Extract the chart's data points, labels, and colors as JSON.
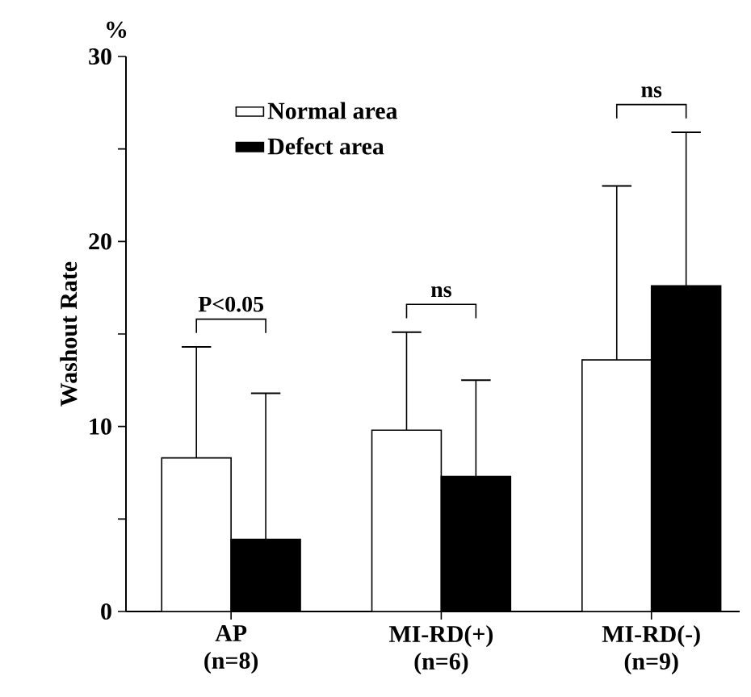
{
  "chart_data": {
    "type": "bar",
    "ylabel": "Washout Rate",
    "categories": [
      "AP (n=8)",
      "MI-RD(+) (n=6)",
      "MI-RD(-) (n=9)"
    ],
    "series": [
      {
        "name": "Normal area",
        "color": "#ffffff",
        "values": [
          8.3,
          9.8,
          13.6
        ],
        "errors": [
          [
            8.3,
            14.3
          ],
          [
            9.8,
            15.1
          ],
          [
            13.6,
            23.0
          ]
        ]
      },
      {
        "name": "Defect area",
        "color": "#000000",
        "values": [
          3.9,
          7.3,
          17.6
        ],
        "errors": [
          [
            3.9,
            11.8
          ],
          [
            7.3,
            12.5
          ],
          [
            17.6,
            25.9
          ]
        ]
      }
    ],
    "ylim": [
      0,
      30
    ],
    "yticks": [
      0,
      {
        "value": 5,
        "label": null
      },
      10,
      {
        "value": 15,
        "label": null
      },
      20,
      {
        "value": 25,
        "label": null
      },
      30
    ],
    "legend": "top left",
    "annotations": [
      "%",
      "P<0.05",
      "ns",
      "ns"
    ]
  }
}
